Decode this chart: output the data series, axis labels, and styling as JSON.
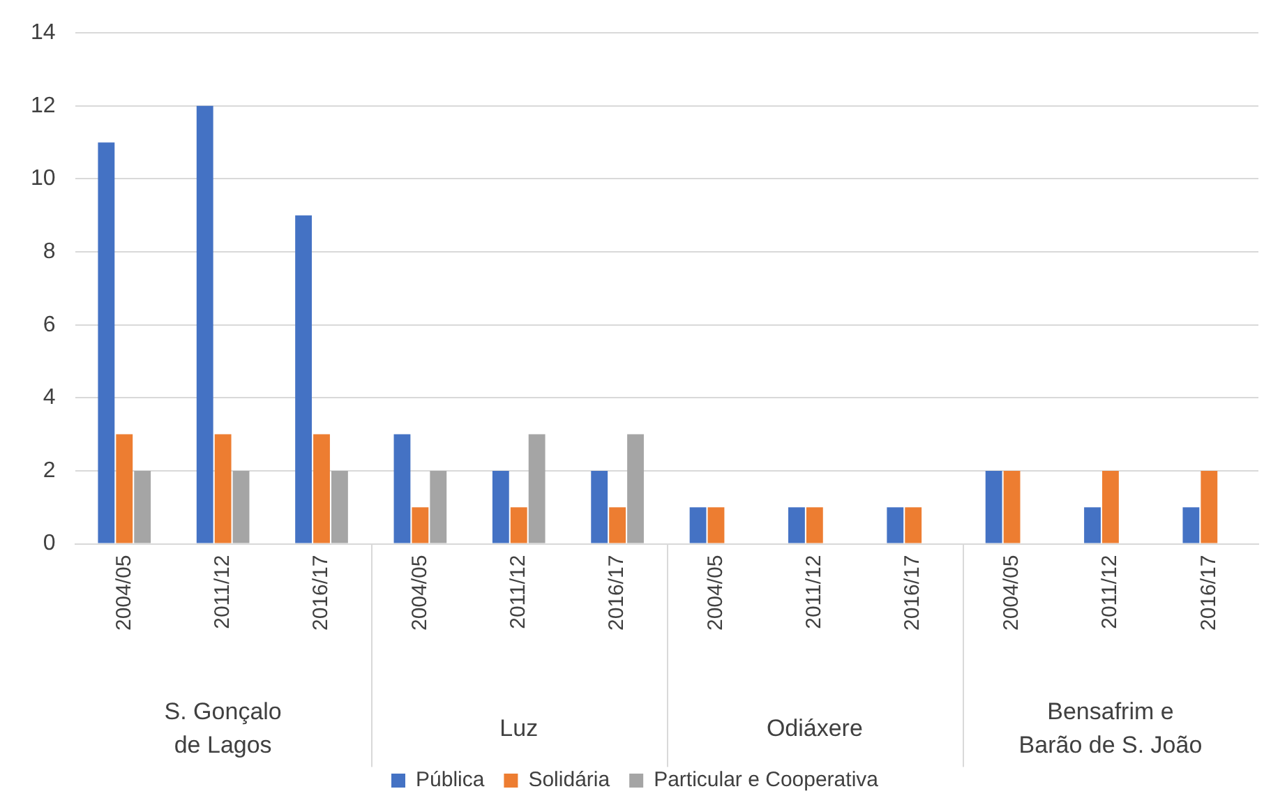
{
  "chart_data": {
    "type": "bar",
    "categories": [
      "2004/05",
      "2011/12",
      "2016/17",
      "2004/05",
      "2011/12",
      "2016/17",
      "2004/05",
      "2011/12",
      "2016/17",
      "2004/05",
      "2011/12",
      "2016/17"
    ],
    "series": [
      {
        "name": "Pública",
        "color": "#4472c4",
        "values": [
          11,
          12,
          9,
          3,
          2,
          2,
          1,
          1,
          1,
          2,
          1,
          1
        ]
      },
      {
        "name": "Solidária",
        "color": "#ed7d31",
        "values": [
          3,
          3,
          3,
          1,
          1,
          1,
          1,
          1,
          1,
          2,
          2,
          2
        ]
      },
      {
        "name": "Particular e Cooperativa",
        "color": "#a5a5a5",
        "values": [
          2,
          2,
          2,
          2,
          3,
          3,
          0,
          0,
          0,
          0,
          0,
          0
        ]
      }
    ],
    "annotations": [
      "S. Gonçalo\nde Lagos",
      "Luz",
      "Odiáxere",
      "Bensafrim e\nBarão de S. João"
    ],
    "ylim": [
      0,
      14
    ],
    "yticks": [
      0,
      2,
      4,
      6,
      8,
      10,
      12,
      14
    ],
    "grid": "y",
    "legend": "bottom"
  }
}
